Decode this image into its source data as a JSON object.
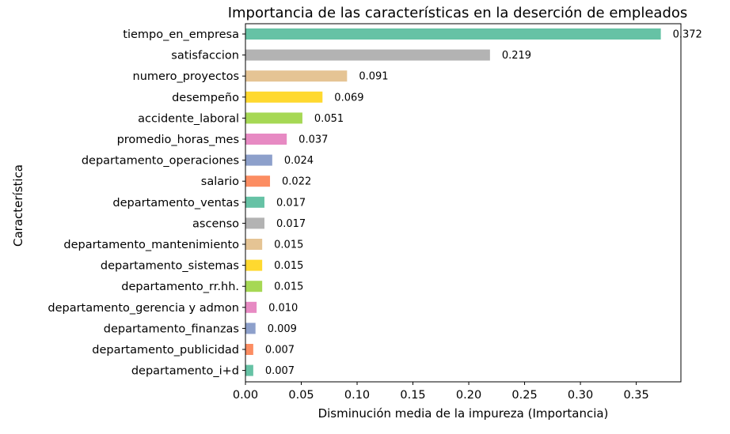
{
  "chart_data": {
    "type": "bar",
    "orientation": "horizontal",
    "title": "Importancia de las características en la deserción de empleados",
    "xlabel": "Disminución media de la impureza (Importancia)",
    "ylabel": "Característica",
    "xlim": [
      0,
      0.39
    ],
    "xticks": [
      "0.00",
      "0.05",
      "0.10",
      "0.15",
      "0.20",
      "0.25",
      "0.30",
      "0.35"
    ],
    "grid": false,
    "categories": [
      "tiempo_en_empresa",
      "satisfaccion",
      "numero_proyectos",
      "desempeño",
      "accidente_laboral",
      "promedio_horas_mes",
      "departamento_operaciones",
      "salario",
      "departamento_ventas",
      "ascenso",
      "departamento_mantenimiento",
      "departamento_sistemas",
      "departamento_rr.hh.",
      "departamento_gerencia y admon",
      "departamento_finanzas",
      "departamento_publicidad",
      "departamento_i+d"
    ],
    "values": [
      0.372,
      0.219,
      0.091,
      0.069,
      0.051,
      0.037,
      0.024,
      0.022,
      0.017,
      0.017,
      0.015,
      0.015,
      0.015,
      0.01,
      0.009,
      0.007,
      0.007
    ],
    "value_labels": [
      "0.372",
      "0.219",
      "0.091",
      "0.069",
      "0.051",
      "0.037",
      "0.024",
      "0.022",
      "0.017",
      "0.017",
      "0.015",
      "0.015",
      "0.015",
      "0.010",
      "0.009",
      "0.007",
      "0.007"
    ],
    "colors": [
      "#66c2a5",
      "#b3b3b3",
      "#e5c494",
      "#ffd92f",
      "#a6d854",
      "#e78ac3",
      "#8da0cb",
      "#fc8d62",
      "#66c2a5",
      "#b3b3b3",
      "#e5c494",
      "#ffd92f",
      "#a6d854",
      "#e78ac3",
      "#8da0cb",
      "#fc8d62",
      "#66c2a5"
    ]
  }
}
